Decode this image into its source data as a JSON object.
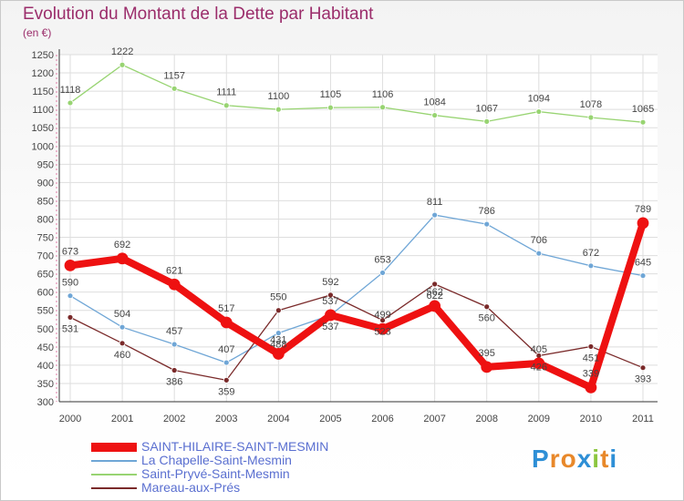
{
  "title": "Evolution du Montant de la Dette par Habitant",
  "subtitle": "(en €)",
  "brand": {
    "letters": [
      "P",
      "r",
      "o",
      "x",
      "i",
      "t",
      "i"
    ],
    "colors": [
      "#2e8fd6",
      "#e8882a",
      "#e8882a",
      "#2e8fd6",
      "#8cc63f",
      "#e8882a",
      "#2e8fd6"
    ]
  },
  "chart_data": {
    "type": "line",
    "title": "Evolution du Montant de la Dette par Habitant",
    "ylabel": "(en €)",
    "xlabel": "",
    "ylim": [
      300,
      1250
    ],
    "ytick_step": 50,
    "x": [
      "2000",
      "2001",
      "2002",
      "2003",
      "2004",
      "2005",
      "2006",
      "2007",
      "2008",
      "2009",
      "2010",
      "2011"
    ],
    "grid": true,
    "legend_position": "bottom-left",
    "series": [
      {
        "name": "SAINT-HILAIRE-SAINT-MESMIN",
        "color": "#ee1111",
        "values": [
          673,
          692,
          621,
          517,
          431,
          537,
          499,
          562,
          395,
          405,
          339,
          789
        ]
      },
      {
        "name": "La Chapelle-Saint-Mesmin",
        "color": "#6fa6d6",
        "values": [
          590,
          504,
          457,
          407,
          488,
          537,
          653,
          811,
          786,
          706,
          672,
          645
        ]
      },
      {
        "name": "Saint-Pryvé-Saint-Mesmin",
        "color": "#98d472",
        "values": [
          1118,
          1222,
          1157,
          1111,
          1100,
          1105,
          1106,
          1084,
          1067,
          1094,
          1078,
          1065
        ]
      },
      {
        "name": "Mareau-aux-Prés",
        "color": "#7a2a2a",
        "values": [
          531,
          460,
          386,
          359,
          550,
          592,
          523,
          622,
          560,
          426,
          451,
          393
        ]
      }
    ]
  }
}
